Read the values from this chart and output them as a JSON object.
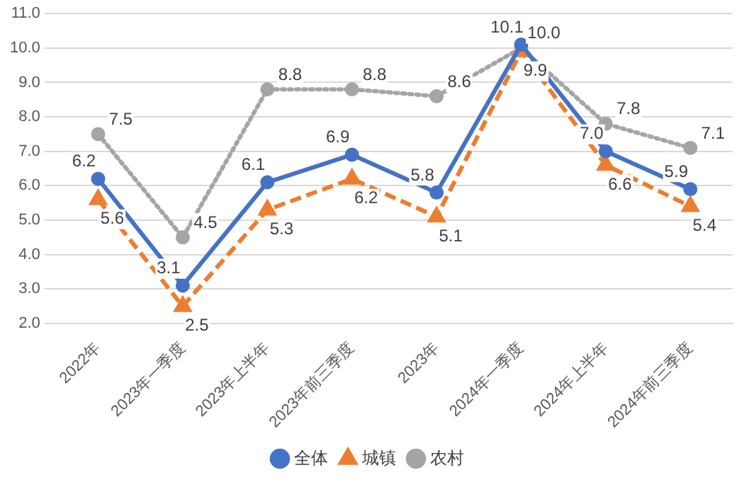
{
  "chart_data": {
    "type": "line",
    "categories": [
      "2022年",
      "2023年一季度",
      "2023年上半年",
      "2023年前三季度",
      "2023年",
      "2024年一季度",
      "2024年上半年",
      "2024年前三季度"
    ],
    "series": [
      {
        "name": "全体",
        "color": "#4472c4",
        "marker": "circle",
        "line_style": "solid",
        "values": [
          6.2,
          3.1,
          6.1,
          6.9,
          5.8,
          10.1,
          7.0,
          5.9
        ],
        "value_labels": [
          "6.2",
          "3.1",
          "6.1",
          "6.9",
          "5.8",
          "10.1",
          "7.0",
          "5.9"
        ]
      },
      {
        "name": "城镇",
        "color": "#ed7d31",
        "marker": "triangle",
        "line_style": "dashed",
        "values": [
          5.6,
          2.5,
          5.3,
          6.2,
          5.1,
          9.9,
          6.6,
          5.4
        ],
        "value_labels": [
          "5.6",
          "2.5",
          "5.3",
          "6.2",
          "5.1",
          "9.9",
          "6.6",
          "5.4"
        ]
      },
      {
        "name": "农村",
        "color": "#a5a5a5",
        "marker": "circle",
        "line_style": "dotted",
        "values": [
          7.5,
          4.5,
          8.8,
          8.8,
          8.6,
          10.0,
          7.8,
          7.1
        ],
        "value_labels": [
          "7.5",
          "4.5",
          "8.8",
          "8.8",
          "8.6",
          "10.0",
          "7.8",
          "7.1"
        ]
      }
    ],
    "ylim": [
      2.0,
      11.0
    ],
    "yticks": [
      {
        "value": 2,
        "label": "2.0"
      },
      {
        "value": 3,
        "label": "3.0"
      },
      {
        "value": 4,
        "label": "4.0"
      },
      {
        "value": 5,
        "label": "5.0"
      },
      {
        "value": 6,
        "label": "6.0"
      },
      {
        "value": 7,
        "label": "7.0"
      },
      {
        "value": 8,
        "label": "8.0"
      },
      {
        "value": 9,
        "label": "9.0"
      },
      {
        "value": 10,
        "label": "10.0"
      },
      {
        "value": 11,
        "label": "11.0"
      }
    ],
    "grid": "y",
    "legend": "bottom"
  }
}
